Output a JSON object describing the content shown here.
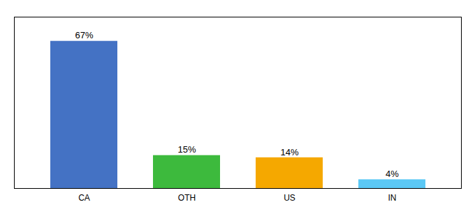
{
  "chart_data": {
    "type": "bar",
    "categories": [
      "CA",
      "OTH",
      "US",
      "IN"
    ],
    "values": [
      67,
      15,
      14,
      4
    ],
    "value_labels": [
      "67%",
      "15%",
      "14%",
      "4%"
    ],
    "colors": [
      "#4472c4",
      "#3dba3d",
      "#f5a800",
      "#5bc8f5"
    ],
    "ylim": [
      0,
      78
    ],
    "data_labels": true,
    "grid": false,
    "tick_labels": "x"
  }
}
